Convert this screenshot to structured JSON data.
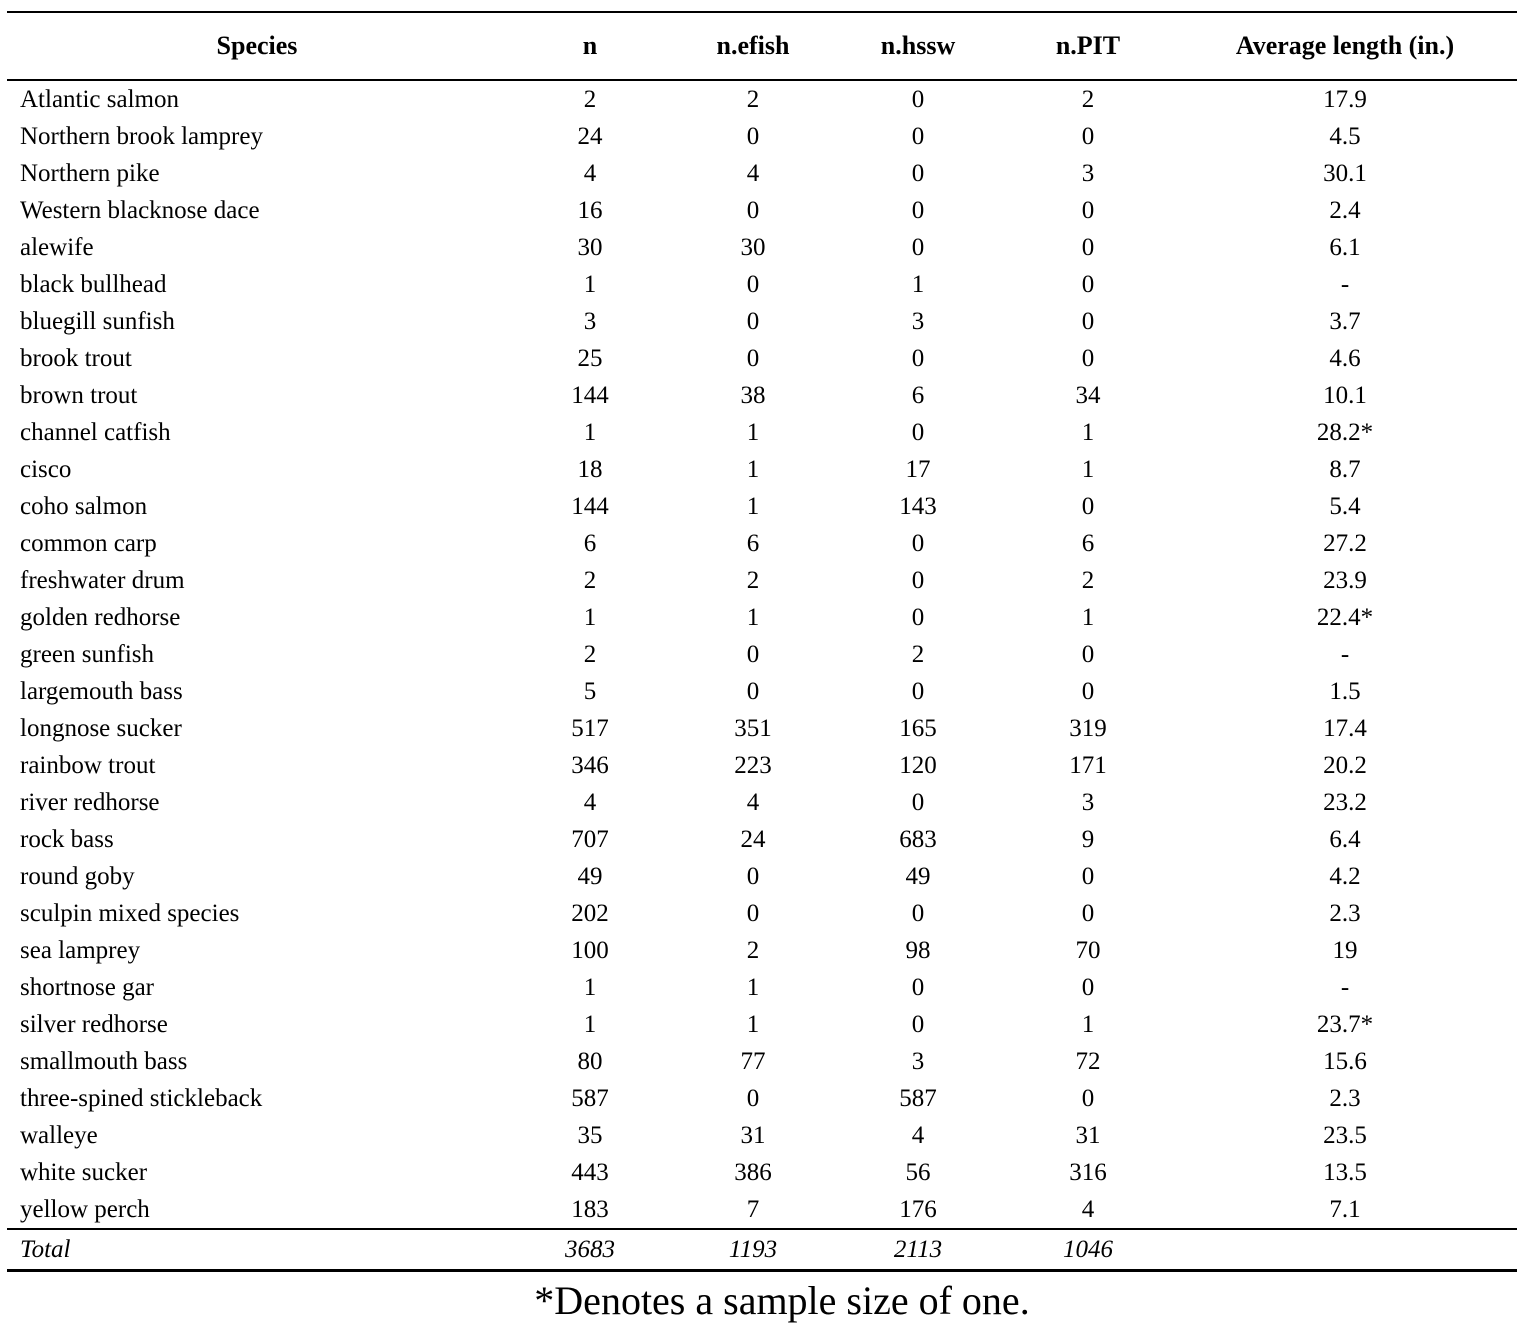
{
  "table": {
    "columns": [
      "Species",
      "n",
      "n.efish",
      "n.hssw",
      "n.PIT",
      "Average length (in.)"
    ],
    "rows": [
      [
        "Atlantic salmon",
        "2",
        "2",
        "0",
        "2",
        "17.9"
      ],
      [
        "Northern brook lamprey",
        "24",
        "0",
        "0",
        "0",
        "4.5"
      ],
      [
        "Northern pike",
        "4",
        "4",
        "0",
        "3",
        "30.1"
      ],
      [
        "Western blacknose dace",
        "16",
        "0",
        "0",
        "0",
        "2.4"
      ],
      [
        "alewife",
        "30",
        "30",
        "0",
        "0",
        "6.1"
      ],
      [
        "black bullhead",
        "1",
        "0",
        "1",
        "0",
        "-"
      ],
      [
        "bluegill sunfish",
        "3",
        "0",
        "3",
        "0",
        "3.7"
      ],
      [
        "brook trout",
        "25",
        "0",
        "0",
        "0",
        "4.6"
      ],
      [
        "brown trout",
        "144",
        "38",
        "6",
        "34",
        "10.1"
      ],
      [
        "channel catfish",
        "1",
        "1",
        "0",
        "1",
        "28.2*"
      ],
      [
        "cisco",
        "18",
        "1",
        "17",
        "1",
        "8.7"
      ],
      [
        "coho salmon",
        "144",
        "1",
        "143",
        "0",
        "5.4"
      ],
      [
        "common carp",
        "6",
        "6",
        "0",
        "6",
        "27.2"
      ],
      [
        "freshwater drum",
        "2",
        "2",
        "0",
        "2",
        "23.9"
      ],
      [
        "golden redhorse",
        "1",
        "1",
        "0",
        "1",
        "22.4*"
      ],
      [
        "green sunfish",
        "2",
        "0",
        "2",
        "0",
        "-"
      ],
      [
        "largemouth bass",
        "5",
        "0",
        "0",
        "0",
        "1.5"
      ],
      [
        "longnose sucker",
        "517",
        "351",
        "165",
        "319",
        "17.4"
      ],
      [
        "rainbow trout",
        "346",
        "223",
        "120",
        "171",
        "20.2"
      ],
      [
        "river redhorse",
        "4",
        "4",
        "0",
        "3",
        "23.2"
      ],
      [
        "rock bass",
        "707",
        "24",
        "683",
        "9",
        "6.4"
      ],
      [
        "round goby",
        "49",
        "0",
        "49",
        "0",
        "4.2"
      ],
      [
        "sculpin mixed species",
        "202",
        "0",
        "0",
        "0",
        "2.3"
      ],
      [
        "sea lamprey",
        "100",
        "2",
        "98",
        "70",
        "19"
      ],
      [
        "shortnose gar",
        "1",
        "1",
        "0",
        "0",
        "-"
      ],
      [
        "silver redhorse",
        "1",
        "1",
        "0",
        "1",
        "23.7*"
      ],
      [
        "smallmouth bass",
        "80",
        "77",
        "3",
        "72",
        "15.6"
      ],
      [
        "three-spined stickleback",
        "587",
        "0",
        "587",
        "0",
        "2.3"
      ],
      [
        "walleye",
        "35",
        "31",
        "4",
        "31",
        "23.5"
      ],
      [
        "white sucker",
        "443",
        "386",
        "56",
        "316",
        "13.5"
      ],
      [
        "yellow perch",
        "183",
        "7",
        "176",
        "4",
        "7.1"
      ]
    ],
    "total": [
      "Total",
      "3683",
      "1193",
      "2113",
      "1046",
      ""
    ]
  },
  "footnote": "*Denotes a sample size of one."
}
